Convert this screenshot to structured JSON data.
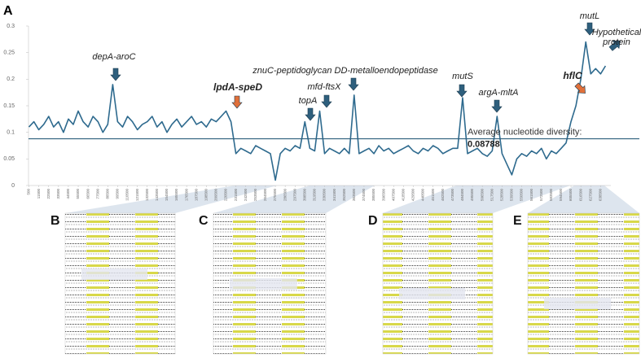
{
  "chart_data": {
    "type": "line",
    "panel_label": "A",
    "color": "#2e6a8e",
    "ylim": [
      0,
      0.3
    ],
    "yticks": [
      0,
      0.05,
      0.1,
      0.15,
      0.2,
      0.25,
      0.3
    ],
    "xlim": [
      0,
      650000
    ],
    "xticks": [
      500,
      11500,
      22500,
      33500,
      44500,
      55500,
      66500,
      77500,
      88500,
      99500,
      110500,
      121500,
      132500,
      143500,
      154500,
      165500,
      176500,
      187500,
      198500,
      209500,
      220500,
      231500,
      242500,
      253500,
      264500,
      275500,
      286500,
      297500,
      308500,
      319500,
      330500,
      341500,
      352500,
      363500,
      374500,
      385500,
      396500,
      407500,
      418500,
      429500,
      440500,
      451500,
      462500,
      473500,
      484500,
      495500,
      506500,
      517500,
      528500,
      539500,
      550500,
      561500,
      572500,
      583500,
      594500,
      605500,
      616500,
      627500,
      638500
    ],
    "x": [
      500,
      6000,
      11500,
      17000,
      22500,
      28000,
      33500,
      39000,
      44500,
      50000,
      55500,
      61000,
      66500,
      72000,
      77500,
      83000,
      88500,
      94000,
      99500,
      105000,
      110500,
      116000,
      121500,
      127000,
      132500,
      138000,
      143500,
      149000,
      154500,
      160000,
      165500,
      171000,
      176500,
      182000,
      187500,
      193000,
      198500,
      204000,
      209500,
      215000,
      220500,
      226000,
      231500,
      237000,
      242500,
      248000,
      253500,
      259000,
      264500,
      270000,
      275500,
      281000,
      286500,
      292000,
      297500,
      303000,
      308500,
      314000,
      319500,
      325000,
      330500,
      336000,
      341500,
      347000,
      352500,
      358000,
      363500,
      369000,
      374500,
      380000,
      385500,
      391000,
      396500,
      402000,
      407500,
      413000,
      418500,
      424000,
      429500,
      435000,
      440500,
      446000,
      451500,
      457000,
      462500,
      468000,
      473500,
      479000,
      484500,
      490000,
      495500,
      501000,
      506500,
      512000,
      517500,
      523000,
      528500,
      534000,
      539500,
      545000,
      550500,
      556000,
      561500,
      567000,
      572500,
      578000,
      583500,
      589000,
      594500,
      600000,
      605500,
      611000,
      616500,
      622000,
      627500,
      633000,
      638500,
      644000
    ],
    "values": [
      0.11,
      0.12,
      0.105,
      0.115,
      0.13,
      0.11,
      0.12,
      0.1,
      0.125,
      0.115,
      0.14,
      0.12,
      0.11,
      0.13,
      0.12,
      0.1,
      0.115,
      0.19,
      0.12,
      0.11,
      0.13,
      0.12,
      0.105,
      0.115,
      0.12,
      0.13,
      0.11,
      0.12,
      0.1,
      0.115,
      0.125,
      0.11,
      0.12,
      0.13,
      0.115,
      0.12,
      0.11,
      0.125,
      0.12,
      0.13,
      0.14,
      0.12,
      0.06,
      0.07,
      0.065,
      0.06,
      0.075,
      0.07,
      0.065,
      0.06,
      0.01,
      0.06,
      0.07,
      0.065,
      0.075,
      0.07,
      0.12,
      0.07,
      0.065,
      0.14,
      0.06,
      0.07,
      0.065,
      0.06,
      0.07,
      0.06,
      0.17,
      0.06,
      0.065,
      0.07,
      0.06,
      0.075,
      0.065,
      0.07,
      0.06,
      0.065,
      0.07,
      0.075,
      0.065,
      0.06,
      0.07,
      0.065,
      0.075,
      0.07,
      0.06,
      0.065,
      0.07,
      0.07,
      0.165,
      0.06,
      0.065,
      0.07,
      0.06,
      0.055,
      0.065,
      0.13,
      0.06,
      0.04,
      0.02,
      0.05,
      0.06,
      0.055,
      0.065,
      0.06,
      0.07,
      0.05,
      0.065,
      0.06,
      0.07,
      0.08,
      0.12,
      0.15,
      0.2,
      0.27,
      0.21,
      0.22,
      0.21,
      0.225
    ],
    "average": 0.08788,
    "average_label": "Average nucleotide diversity:",
    "annotations": [
      {
        "text": "depA-aroC",
        "color": "#2e5f7d"
      },
      {
        "text": "lpdA-speD",
        "color": "#e0703a"
      },
      {
        "text": "topA",
        "color": "#2e5f7d"
      },
      {
        "text": "mfd-ftsX",
        "color": "#2e5f7d"
      },
      {
        "text": "znuC-peptidoglycan DD-metalloendopeptidase",
        "color": "#2e5f7d"
      },
      {
        "text": "mutS",
        "color": "#2e5f7d"
      },
      {
        "text": "argA-mltA",
        "color": "#2e5f7d"
      },
      {
        "text": "hflC",
        "color": "#e0703a"
      },
      {
        "text": "mutL",
        "color": "#2e5f7d"
      },
      {
        "text": "Hypothetical",
        "color": "#2e5f7d"
      },
      {
        "text": "protein",
        "color": "#2e5f7d"
      }
    ],
    "panels": [
      "B",
      "C",
      "D",
      "E"
    ]
  }
}
